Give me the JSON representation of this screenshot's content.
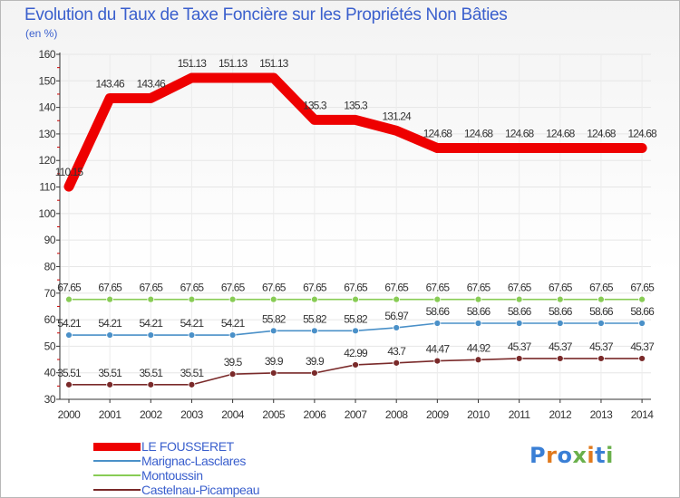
{
  "header": {
    "title": "Evolution du Taux de Taxe Foncière sur les Propriétés Non Bâties",
    "unit": "(en %)"
  },
  "logo": {
    "text": "Proxiti",
    "colors": [
      "#3a7fd5",
      "#e07a1e",
      "#3a7fd5",
      "#6ab04c",
      "#e07a1e",
      "#3a7fd5",
      "#6ab04c"
    ]
  },
  "chart_data": {
    "type": "line",
    "title": "Evolution du Taux de Taxe Foncière sur les Propriétés Non Bâties",
    "ylabel": "(en %)",
    "xlabel": "",
    "x": [
      "2000",
      "2001",
      "2002",
      "2003",
      "2004",
      "2005",
      "2006",
      "2007",
      "2008",
      "2009",
      "2010",
      "2011",
      "2012",
      "2013",
      "2014"
    ],
    "ylim": [
      30,
      160
    ],
    "yticks": [
      "30",
      "40",
      "50",
      "60",
      "70",
      "80",
      "90",
      "100",
      "110",
      "120",
      "130",
      "140",
      "150",
      "160"
    ],
    "grid": true,
    "legend_position": "bottom-left",
    "series": [
      {
        "name": "LE FOUSSERET",
        "color": "#ee0000",
        "values": [
          110.15,
          143.46,
          143.46,
          151.13,
          151.13,
          151.13,
          135.3,
          135.3,
          131.24,
          124.68,
          124.68,
          124.68,
          124.68,
          124.68,
          124.68
        ],
        "labels": [
          "110.15",
          "143.46",
          "143.46",
          "151.13",
          "151.13",
          "151.13",
          "135.3",
          "135.3",
          "131.24",
          "124.68",
          "124.68",
          "124.68",
          "124.68",
          "124.68",
          "124.68"
        ]
      },
      {
        "name": "Marignac-Lasclares",
        "color": "#4a90c8",
        "values": [
          54.21,
          54.21,
          54.21,
          54.21,
          54.21,
          55.82,
          55.82,
          55.82,
          56.97,
          58.66,
          58.66,
          58.66,
          58.66,
          58.66,
          58.66
        ],
        "labels": [
          "54.21",
          "54.21",
          "54.21",
          "54.21",
          "54.21",
          "55.82",
          "55.82",
          "55.82",
          "56.97",
          "58.66",
          "58.66",
          "58.66",
          "58.66",
          "58.66",
          "58.66"
        ]
      },
      {
        "name": "Montoussin",
        "color": "#88cc55",
        "values": [
          67.65,
          67.65,
          67.65,
          67.65,
          67.65,
          67.65,
          67.65,
          67.65,
          67.65,
          67.65,
          67.65,
          67.65,
          67.65,
          67.65,
          67.65
        ],
        "labels": [
          "67.65",
          "67.65",
          "67.65",
          "67.65",
          "67.65",
          "67.65",
          "67.65",
          "67.65",
          "67.65",
          "67.65",
          "67.65",
          "67.65",
          "67.65",
          "67.65",
          "67.65"
        ]
      },
      {
        "name": "Castelnau-Picampeau",
        "color": "#7a2a2a",
        "values": [
          35.51,
          35.51,
          35.51,
          35.51,
          39.5,
          39.9,
          39.9,
          42.99,
          43.7,
          44.47,
          44.92,
          45.37,
          45.37,
          45.37,
          45.37
        ],
        "labels": [
          "35.51",
          "35.51",
          "35.51",
          "35.51",
          "39.5",
          "39.9",
          "39.9",
          "42.99",
          "43.7",
          "44.47",
          "44.92",
          "45.37",
          "45.37",
          "45.37",
          "45.37"
        ]
      }
    ]
  }
}
